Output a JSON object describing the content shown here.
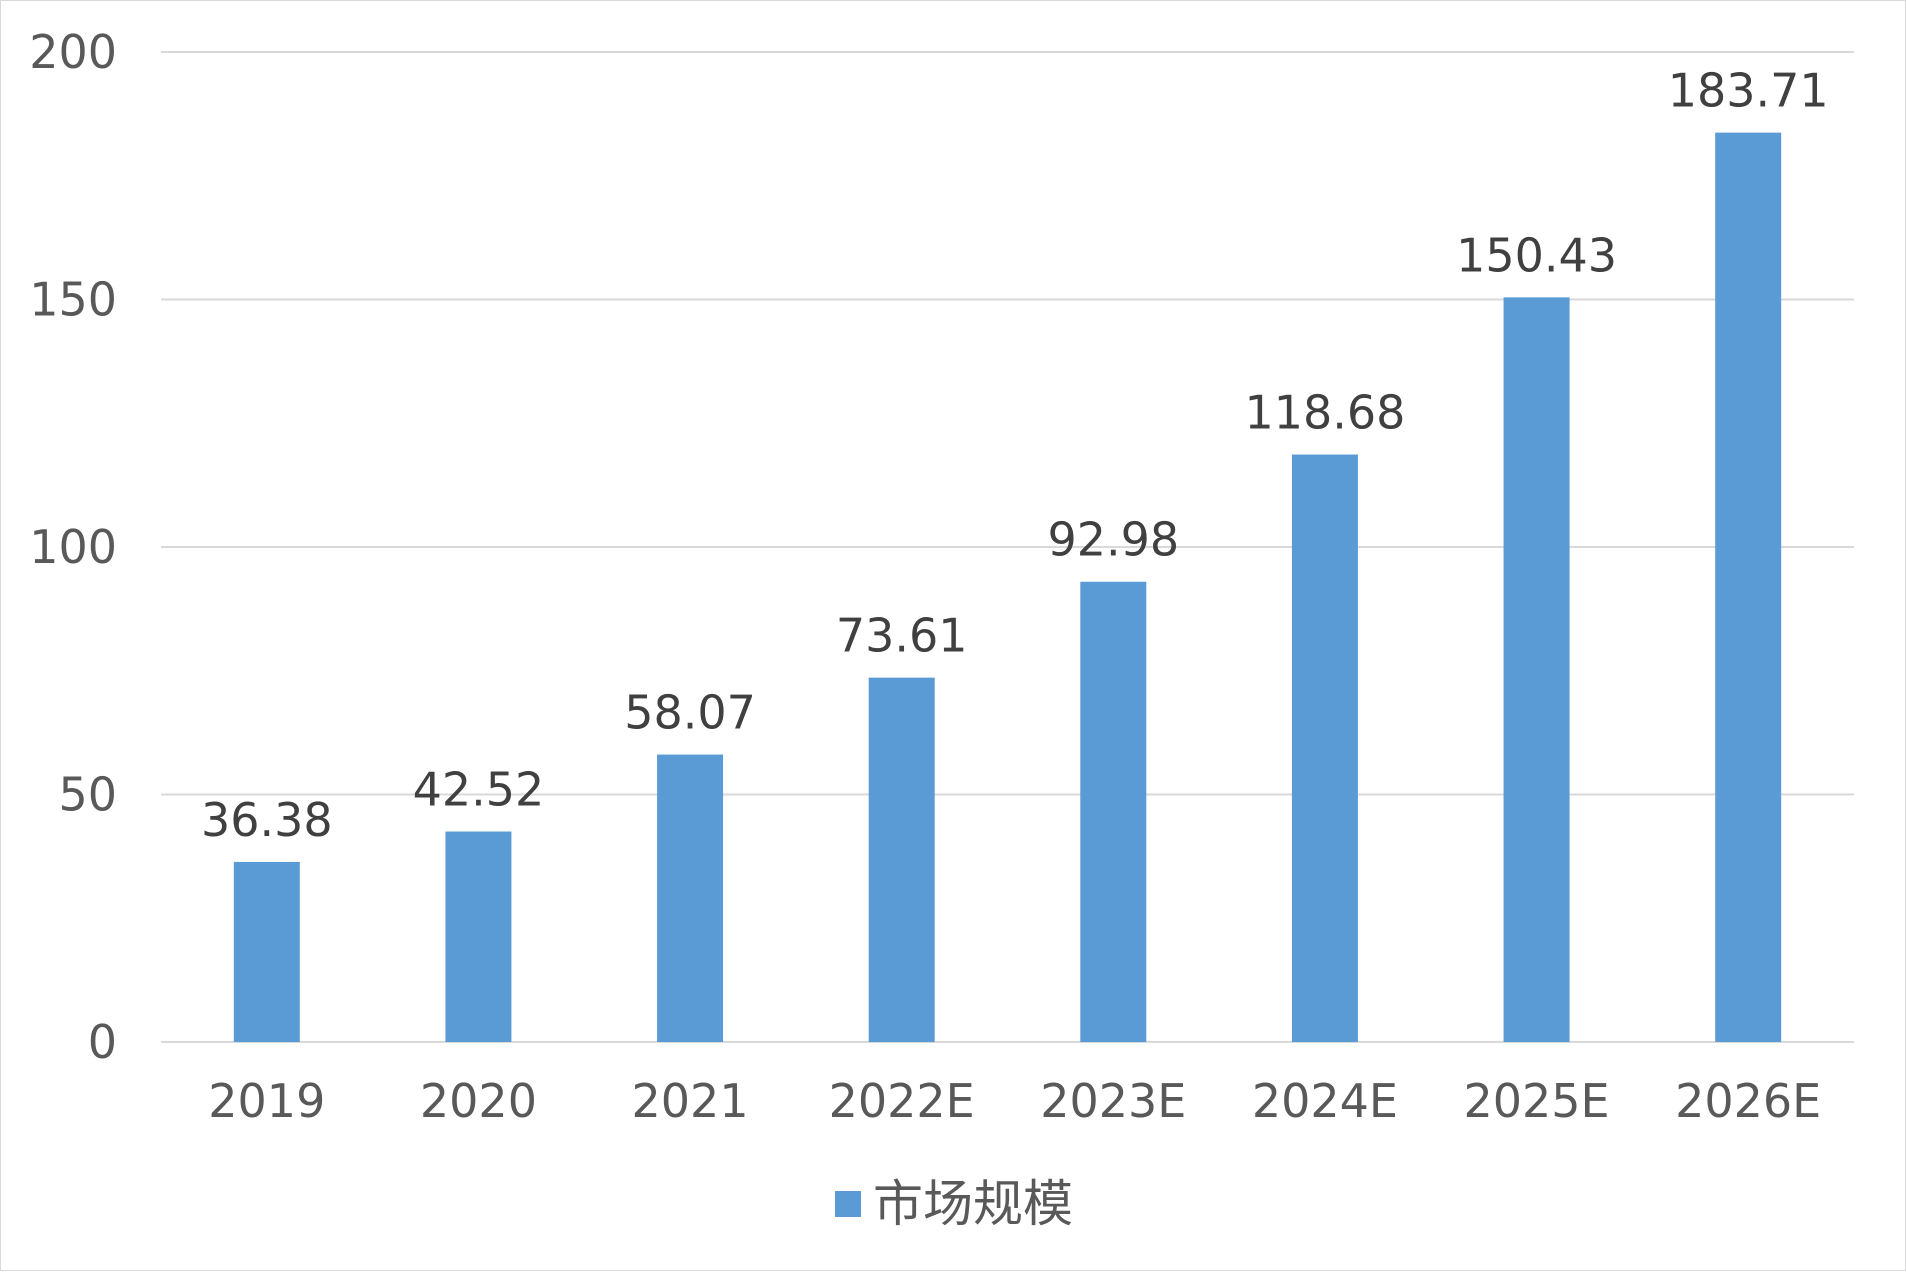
{
  "chart_data": {
    "type": "bar",
    "categories": [
      "2019",
      "2020",
      "2021",
      "2022E",
      "2023E",
      "2024E",
      "2025E",
      "2026E"
    ],
    "series": [
      {
        "name": "市场规模",
        "values": [
          36.38,
          42.52,
          58.07,
          73.61,
          92.98,
          118.68,
          150.43,
          183.71
        ],
        "color": "#5b9bd5"
      }
    ],
    "data_labels": [
      "36.38",
      "42.52",
      "58.07",
      "73.61",
      "92.98",
      "118.68",
      "150.43",
      "183.71"
    ],
    "ylim": [
      0,
      200
    ],
    "yticks": [
      0,
      50,
      100,
      150,
      200
    ],
    "ytick_labels": [
      "0",
      "50",
      "100",
      "150",
      "200"
    ],
    "grid": true,
    "gridline_color": "#d9d9d9",
    "legend_position": "bottom"
  }
}
